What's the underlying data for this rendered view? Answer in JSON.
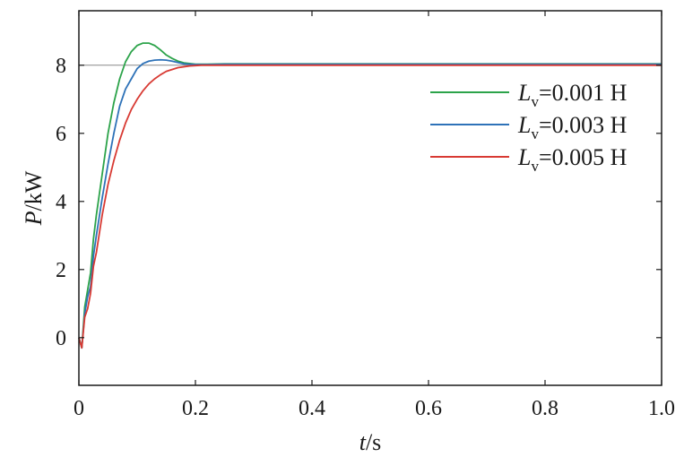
{
  "chart_data": {
    "type": "line",
    "xlabel": {
      "var": "t",
      "unit": "/s"
    },
    "ylabel": {
      "var": "P",
      "unit": "/kW"
    },
    "xlim": [
      0,
      1.0
    ],
    "ylim": [
      -1.4,
      9.6
    ],
    "xticks": [
      0,
      0.2,
      0.4,
      0.6,
      0.8,
      1.0
    ],
    "xtick_labels": [
      "0",
      "0.2",
      "0.4",
      "0.6",
      "0.8",
      "1.0"
    ],
    "yticks": [
      0,
      2,
      4,
      6,
      8
    ],
    "ytick_labels": [
      "0",
      "2",
      "4",
      "6",
      "8"
    ],
    "reference_line": {
      "y": 8,
      "color": "#888888"
    },
    "grid": false,
    "legend_position": "right",
    "series": [
      {
        "name": {
          "var": "L",
          "sub": "v",
          "value": "=0.001 H"
        },
        "color": "#2ca34a",
        "x": [
          0,
          0.005,
          0.01,
          0.015,
          0.02,
          0.025,
          0.03,
          0.04,
          0.05,
          0.06,
          0.07,
          0.08,
          0.09,
          0.1,
          0.11,
          0.12,
          0.13,
          0.14,
          0.15,
          0.16,
          0.17,
          0.18,
          0.2,
          0.22,
          0.25,
          0.3,
          0.4,
          0.6,
          0.8,
          1.0
        ],
        "y": [
          0,
          -0.3,
          0.9,
          1.4,
          1.9,
          2.9,
          3.6,
          4.8,
          6.0,
          6.9,
          7.6,
          8.1,
          8.4,
          8.58,
          8.65,
          8.65,
          8.58,
          8.45,
          8.3,
          8.2,
          8.12,
          8.07,
          8.03,
          8.03,
          8.04,
          8.04,
          8.04,
          8.04,
          8.04,
          8.04
        ]
      },
      {
        "name": {
          "var": "L",
          "sub": "v",
          "value": "=0.003 H"
        },
        "color": "#2e72b8",
        "x": [
          0,
          0.005,
          0.01,
          0.015,
          0.02,
          0.025,
          0.03,
          0.04,
          0.05,
          0.06,
          0.07,
          0.08,
          0.09,
          0.1,
          0.11,
          0.12,
          0.13,
          0.14,
          0.15,
          0.16,
          0.17,
          0.18,
          0.19,
          0.2,
          0.22,
          0.25,
          0.3,
          0.4,
          0.6,
          0.8,
          1.0
        ],
        "y": [
          0,
          -0.3,
          0.7,
          1.2,
          1.5,
          2.4,
          3.0,
          4.1,
          5.1,
          6.0,
          6.8,
          7.3,
          7.6,
          7.9,
          8.05,
          8.12,
          8.15,
          8.16,
          8.15,
          8.12,
          8.08,
          8.04,
          8.03,
          8.02,
          8.02,
          8.03,
          8.03,
          8.03,
          8.03,
          8.03,
          8.03
        ]
      },
      {
        "name": {
          "var": "L",
          "sub": "v",
          "value": "=0.005 H"
        },
        "color": "#d83a33",
        "x": [
          0,
          0.005,
          0.01,
          0.015,
          0.02,
          0.025,
          0.03,
          0.04,
          0.05,
          0.06,
          0.07,
          0.08,
          0.09,
          0.1,
          0.11,
          0.12,
          0.13,
          0.14,
          0.15,
          0.17,
          0.19,
          0.21,
          0.23,
          0.25,
          0.3,
          0.4,
          0.6,
          0.8,
          1.0
        ],
        "y": [
          0,
          -0.3,
          0.6,
          0.85,
          1.3,
          2.1,
          2.5,
          3.6,
          4.5,
          5.2,
          5.8,
          6.3,
          6.7,
          7.0,
          7.25,
          7.45,
          7.6,
          7.72,
          7.82,
          7.93,
          7.98,
          8.0,
          8.0,
          8.0,
          8.0,
          8.0,
          8.0,
          8.0,
          8.0
        ]
      }
    ]
  }
}
